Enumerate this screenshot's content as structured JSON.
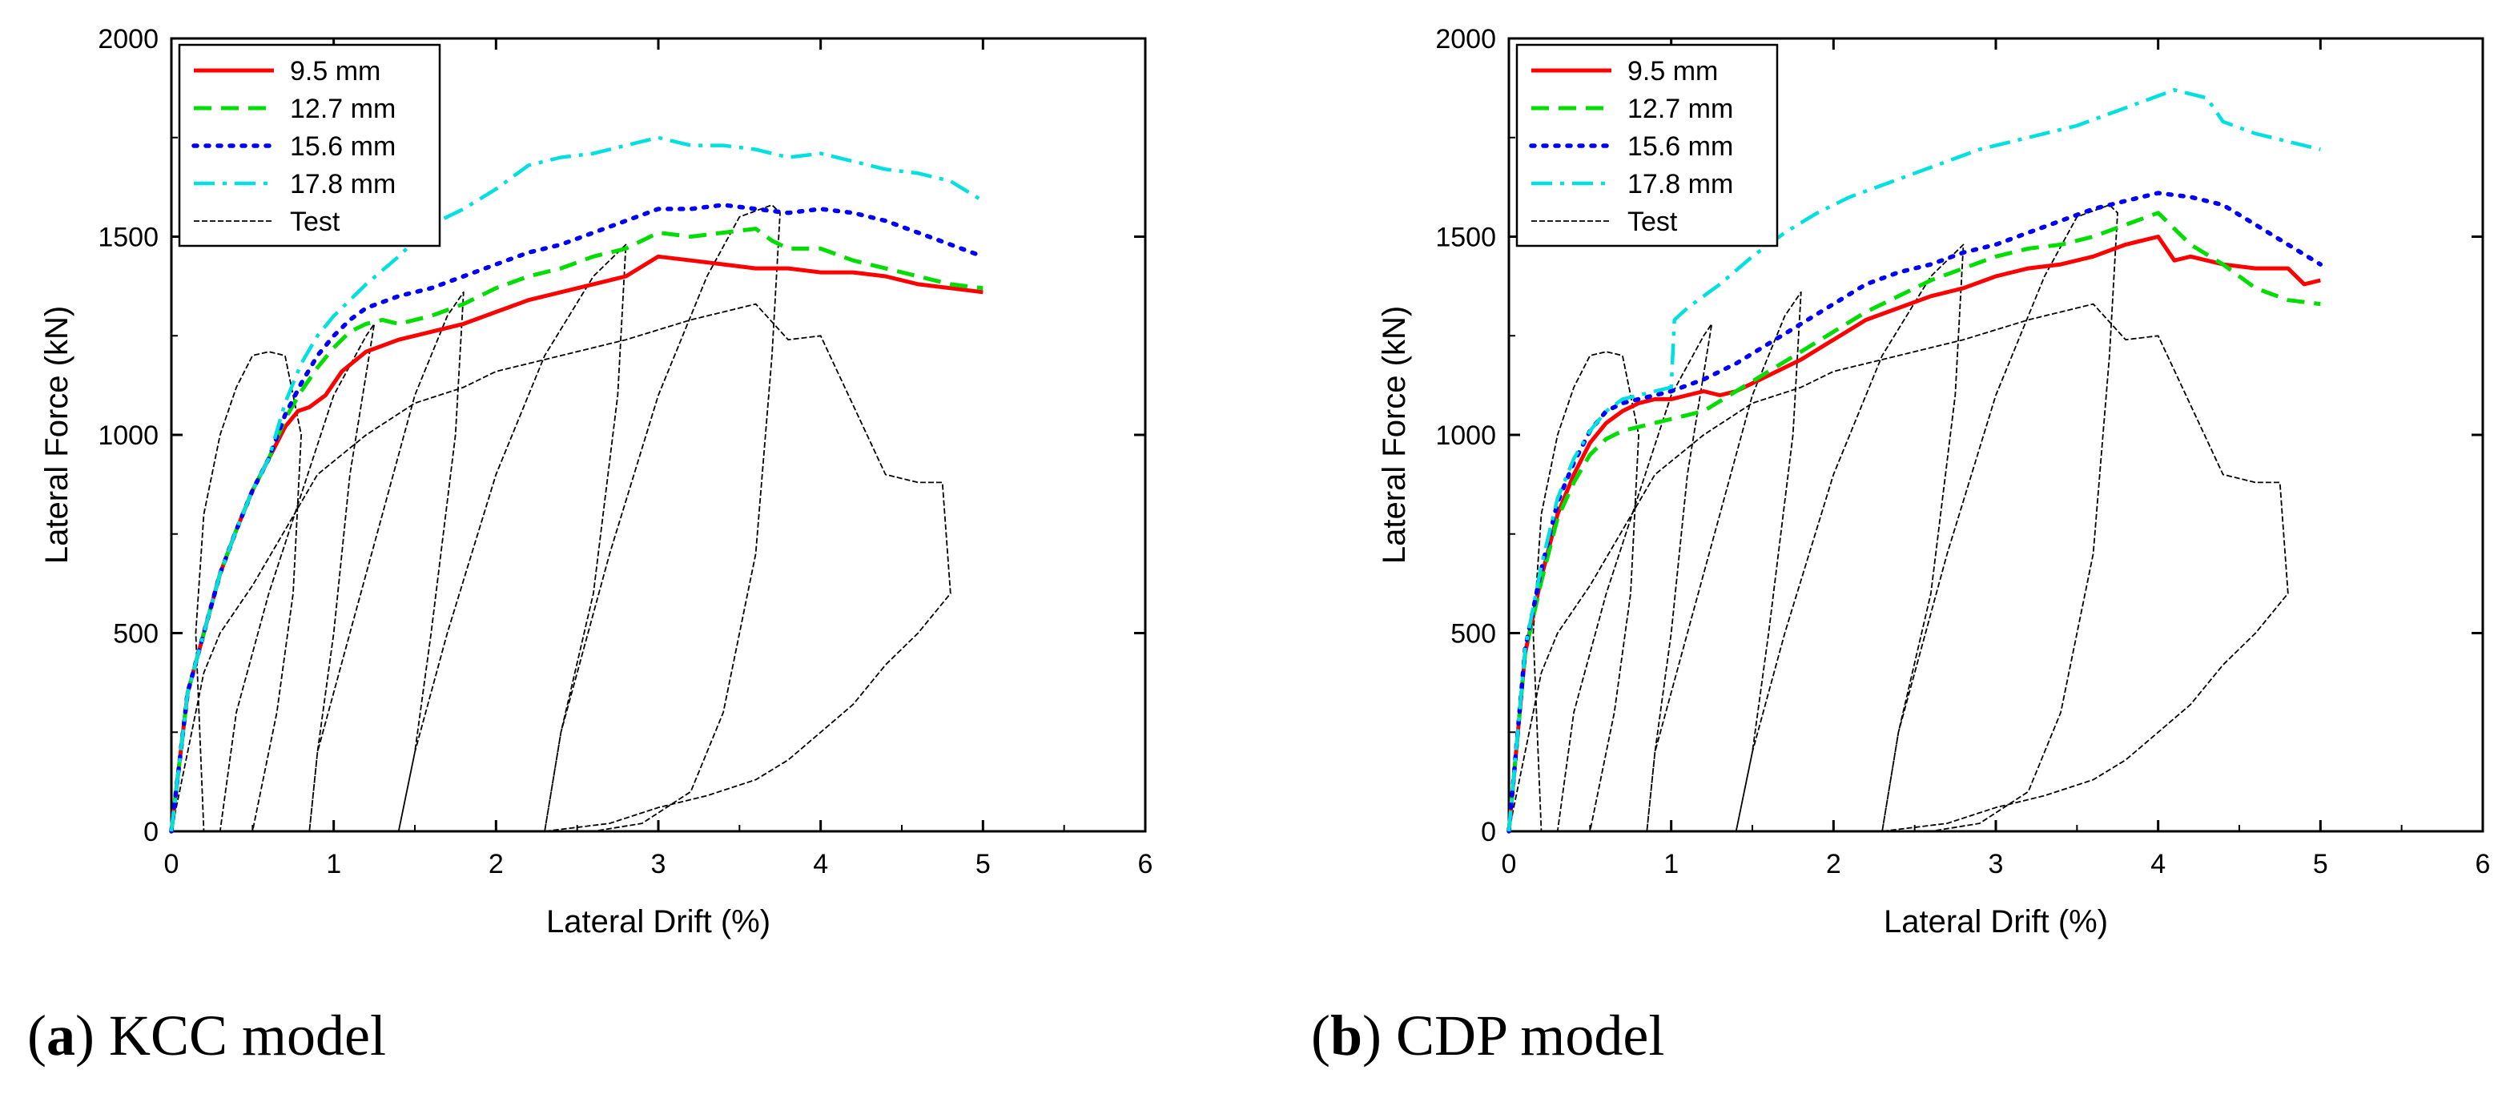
{
  "chart_data": [
    {
      "type": "line",
      "caption": {
        "letter": "a",
        "text": "KCC model"
      },
      "xlabel": "Lateral Drift (%)",
      "ylabel": "Lateral Force (kN)",
      "xlim": [
        0,
        6
      ],
      "ylim": [
        0,
        2000
      ],
      "xticks": [
        0,
        1,
        2,
        3,
        4,
        5,
        6
      ],
      "yticks": [
        0,
        500,
        1000,
        1500,
        2000
      ],
      "legend_position": "top-left",
      "grid": false,
      "series": [
        {
          "name": "9.5 mm",
          "color": "#ff0000",
          "style": "solid",
          "x": [
            0,
            0.1,
            0.2,
            0.3,
            0.4,
            0.5,
            0.6,
            0.7,
            0.78,
            0.85,
            0.95,
            1.05,
            1.2,
            1.4,
            1.6,
            1.8,
            2.0,
            2.2,
            2.4,
            2.6,
            2.8,
            3.0,
            3.2,
            3.4,
            3.6,
            3.8,
            4.0,
            4.2,
            4.4,
            4.6,
            4.8,
            5.0
          ],
          "y": [
            0,
            350,
            500,
            650,
            760,
            860,
            940,
            1020,
            1060,
            1070,
            1100,
            1160,
            1210,
            1240,
            1260,
            1280,
            1310,
            1340,
            1360,
            1380,
            1400,
            1450,
            1440,
            1430,
            1420,
            1420,
            1410,
            1410,
            1400,
            1380,
            1370,
            1360
          ]
        },
        {
          "name": "12.7 mm",
          "color": "#00dd00",
          "style": "dash",
          "x": [
            0,
            0.1,
            0.2,
            0.3,
            0.4,
            0.5,
            0.6,
            0.7,
            0.8,
            0.9,
            1.0,
            1.1,
            1.2,
            1.3,
            1.4,
            1.6,
            1.8,
            2.0,
            2.2,
            2.4,
            2.6,
            2.8,
            3.0,
            3.2,
            3.4,
            3.6,
            3.7,
            3.8,
            4.0,
            4.2,
            4.4,
            4.6,
            4.8,
            5.0
          ],
          "y": [
            0,
            350,
            500,
            650,
            760,
            860,
            940,
            1040,
            1110,
            1170,
            1220,
            1260,
            1280,
            1290,
            1280,
            1300,
            1330,
            1370,
            1400,
            1420,
            1450,
            1470,
            1510,
            1500,
            1510,
            1520,
            1490,
            1470,
            1470,
            1440,
            1420,
            1400,
            1380,
            1370
          ]
        },
        {
          "name": "15.6 mm",
          "color": "#0000ff",
          "style": "dot",
          "x": [
            0,
            0.1,
            0.2,
            0.3,
            0.4,
            0.5,
            0.6,
            0.7,
            0.8,
            0.9,
            1.0,
            1.1,
            1.2,
            1.4,
            1.6,
            1.8,
            2.0,
            2.2,
            2.4,
            2.6,
            2.8,
            3.0,
            3.2,
            3.4,
            3.6,
            3.8,
            4.0,
            4.2,
            4.4,
            4.6,
            4.8,
            5.0
          ],
          "y": [
            0,
            350,
            500,
            650,
            760,
            860,
            940,
            1050,
            1130,
            1200,
            1250,
            1290,
            1320,
            1350,
            1370,
            1400,
            1430,
            1460,
            1480,
            1510,
            1540,
            1570,
            1570,
            1580,
            1570,
            1560,
            1570,
            1560,
            1540,
            1510,
            1480,
            1450
          ]
        },
        {
          "name": "17.8 mm",
          "color": "#00e0e0",
          "style": "dashdot",
          "x": [
            0,
            0.1,
            0.2,
            0.3,
            0.4,
            0.5,
            0.6,
            0.7,
            0.8,
            0.9,
            1.0,
            1.2,
            1.4,
            1.6,
            1.8,
            2.0,
            2.2,
            2.4,
            2.6,
            2.8,
            3.0,
            3.2,
            3.4,
            3.6,
            3.8,
            4.0,
            4.2,
            4.4,
            4.6,
            4.8,
            5.0
          ],
          "y": [
            0,
            350,
            500,
            650,
            760,
            860,
            940,
            1080,
            1180,
            1250,
            1300,
            1380,
            1450,
            1530,
            1570,
            1620,
            1680,
            1700,
            1710,
            1730,
            1750,
            1730,
            1730,
            1720,
            1700,
            1710,
            1690,
            1670,
            1660,
            1640,
            1590
          ]
        },
        {
          "name": "Test",
          "color": "#000000",
          "style": "thin-dash",
          "x": [
            0,
            0.1,
            0.2,
            0.3,
            0.5,
            0.7,
            0.9,
            1.2,
            1.5,
            1.8,
            2.0,
            2.4,
            2.8,
            3.2,
            3.6,
            3.8,
            4.0,
            4.4,
            4.6,
            4.75,
            4.8,
            4.6,
            4.4,
            4.2,
            4.0,
            3.8,
            3.6,
            3.3,
            3.0,
            2.7,
            2.4,
            2.3,
            2.2,
            2.0,
            1.6,
            1.2,
            0.8,
            0.5,
            0.3,
            0.2,
            0.15,
            0.2,
            0.3,
            0.4,
            0.5,
            0.6,
            0.7,
            0.8,
            0.75,
            0.65,
            0.5,
            0.4,
            0.3,
            0.2,
            0.15,
            0.2,
            0.3,
            0.4,
            0.6,
            0.8,
            1.0,
            1.2,
            1.25,
            1.1,
            1.0,
            0.9,
            0.85,
            0.9,
            1.1,
            1.3,
            1.5,
            1.7,
            1.8,
            1.75,
            1.6,
            1.5,
            1.4,
            1.5,
            1.7,
            2.0,
            2.3,
            2.6,
            2.8,
            2.75,
            2.6,
            2.4,
            2.3,
            2.4,
            2.7,
            3.0,
            3.3,
            3.5,
            3.7,
            3.75,
            3.7,
            3.6,
            3.4,
            3.2,
            2.9,
            2.6,
            2.4,
            2.3
          ],
          "y": [
            0,
            200,
            400,
            500,
            620,
            760,
            900,
            1000,
            1080,
            1120,
            1160,
            1200,
            1240,
            1290,
            1330,
            1240,
            1250,
            900,
            880,
            880,
            600,
            500,
            420,
            320,
            250,
            180,
            130,
            90,
            60,
            20,
            5,
            0,
            0,
            0,
            0,
            0,
            0,
            0,
            0,
            0,
            500,
            800,
            1000,
            1120,
            1200,
            1210,
            1200,
            1000,
            600,
            300,
            0,
            0,
            0,
            0,
            0,
            0,
            0,
            300,
            600,
            850,
            1100,
            1250,
            1280,
            900,
            500,
            200,
            0,
            200,
            500,
            800,
            1100,
            1300,
            1360,
            1000,
            500,
            200,
            0,
            200,
            500,
            900,
            1200,
            1400,
            1480,
            1100,
            600,
            250,
            0,
            250,
            700,
            1100,
            1400,
            1550,
            1580,
            1560,
            1200,
            700,
            300,
            100,
            20,
            0,
            0,
            0
          ]
        }
      ]
    },
    {
      "type": "line",
      "caption": {
        "letter": "b",
        "text": "CDP model"
      },
      "xlabel": "Lateral Drift (%)",
      "ylabel": "Lateral Force (kN)",
      "xlim": [
        0,
        6
      ],
      "ylim": [
        0,
        2000
      ],
      "xticks": [
        0,
        1,
        2,
        3,
        4,
        5,
        6
      ],
      "yticks": [
        0,
        500,
        1000,
        1500,
        2000
      ],
      "legend_position": "top-left",
      "grid": false,
      "series": [
        {
          "name": "9.5 mm",
          "color": "#ff0000",
          "style": "solid",
          "x": [
            0,
            0.1,
            0.2,
            0.3,
            0.4,
            0.5,
            0.6,
            0.7,
            0.8,
            0.9,
            1.0,
            1.1,
            1.2,
            1.3,
            1.4,
            1.6,
            1.8,
            2.0,
            2.2,
            2.4,
            2.6,
            2.8,
            3.0,
            3.2,
            3.4,
            3.6,
            3.8,
            4.0,
            4.1,
            4.2,
            4.4,
            4.6,
            4.8,
            4.9,
            5.0
          ],
          "y": [
            0,
            450,
            640,
            800,
            900,
            980,
            1030,
            1060,
            1080,
            1090,
            1090,
            1100,
            1110,
            1100,
            1110,
            1150,
            1190,
            1240,
            1290,
            1320,
            1350,
            1370,
            1400,
            1420,
            1430,
            1450,
            1480,
            1500,
            1440,
            1450,
            1430,
            1420,
            1420,
            1380,
            1390
          ]
        },
        {
          "name": "12.7 mm",
          "color": "#00dd00",
          "style": "dash",
          "x": [
            0,
            0.1,
            0.2,
            0.3,
            0.4,
            0.5,
            0.6,
            0.7,
            0.8,
            0.9,
            1.0,
            1.1,
            1.2,
            1.4,
            1.6,
            1.8,
            2.0,
            2.2,
            2.4,
            2.6,
            2.8,
            3.0,
            3.2,
            3.4,
            3.6,
            3.8,
            4.0,
            4.2,
            4.4,
            4.6,
            4.8,
            5.0
          ],
          "y": [
            0,
            450,
            630,
            790,
            880,
            950,
            990,
            1010,
            1020,
            1030,
            1040,
            1050,
            1060,
            1110,
            1160,
            1210,
            1260,
            1310,
            1350,
            1390,
            1420,
            1450,
            1470,
            1480,
            1500,
            1530,
            1560,
            1480,
            1430,
            1370,
            1340,
            1330
          ]
        },
        {
          "name": "15.6 mm",
          "color": "#0000ff",
          "style": "dot",
          "x": [
            0,
            0.1,
            0.2,
            0.3,
            0.4,
            0.5,
            0.6,
            0.7,
            0.8,
            0.9,
            1.0,
            1.2,
            1.4,
            1.6,
            1.8,
            2.0,
            2.2,
            2.4,
            2.6,
            2.8,
            3.0,
            3.2,
            3.4,
            3.6,
            3.8,
            4.0,
            4.2,
            4.4,
            4.6,
            4.8,
            5.0
          ],
          "y": [
            0,
            460,
            660,
            830,
            930,
            1010,
            1060,
            1080,
            1090,
            1100,
            1110,
            1140,
            1180,
            1230,
            1280,
            1330,
            1380,
            1410,
            1430,
            1460,
            1480,
            1510,
            1540,
            1570,
            1590,
            1610,
            1600,
            1580,
            1530,
            1480,
            1430
          ]
        },
        {
          "name": "17.8 mm",
          "color": "#00e0e0",
          "style": "dashdot",
          "x": [
            0,
            0.1,
            0.2,
            0.3,
            0.4,
            0.5,
            0.6,
            0.7,
            0.8,
            0.9,
            1.0,
            1.02,
            1.1,
            1.3,
            1.5,
            1.7,
            1.9,
            2.1,
            2.3,
            2.5,
            2.7,
            2.9,
            3.1,
            3.3,
            3.5,
            3.7,
            3.9,
            4.1,
            4.2,
            4.3,
            4.4,
            4.6,
            4.8,
            5.0
          ],
          "y": [
            0,
            460,
            670,
            840,
            940,
            1010,
            1060,
            1090,
            1100,
            1110,
            1120,
            1290,
            1320,
            1380,
            1450,
            1510,
            1560,
            1600,
            1630,
            1660,
            1690,
            1720,
            1740,
            1760,
            1780,
            1810,
            1840,
            1870,
            1860,
            1850,
            1790,
            1760,
            1740,
            1720
          ]
        },
        {
          "name": "Test",
          "color": "#000000",
          "style": "thin-dash",
          "x": [
            0,
            0.1,
            0.2,
            0.3,
            0.5,
            0.7,
            0.9,
            1.2,
            1.5,
            1.8,
            2.0,
            2.4,
            2.8,
            3.2,
            3.6,
            3.8,
            4.0,
            4.4,
            4.6,
            4.75,
            4.8,
            4.6,
            4.4,
            4.2,
            4.0,
            3.8,
            3.6,
            3.3,
            3.0,
            2.7,
            2.4,
            2.3,
            2.2,
            2.0,
            1.6,
            1.2,
            0.8,
            0.5,
            0.3,
            0.2,
            0.15,
            0.2,
            0.3,
            0.4,
            0.5,
            0.6,
            0.7,
            0.8,
            0.75,
            0.65,
            0.5,
            0.4,
            0.3,
            0.2,
            0.15,
            0.2,
            0.3,
            0.4,
            0.6,
            0.8,
            1.0,
            1.2,
            1.25,
            1.1,
            1.0,
            0.9,
            0.85,
            0.9,
            1.1,
            1.3,
            1.5,
            1.7,
            1.8,
            1.75,
            1.6,
            1.5,
            1.4,
            1.5,
            1.7,
            2.0,
            2.3,
            2.6,
            2.8,
            2.75,
            2.6,
            2.4,
            2.3,
            2.4,
            2.7,
            3.0,
            3.3,
            3.5,
            3.7,
            3.75,
            3.7,
            3.6,
            3.4,
            3.2,
            2.9,
            2.6,
            2.4,
            2.3
          ],
          "y": [
            0,
            200,
            400,
            500,
            620,
            760,
            900,
            1000,
            1080,
            1120,
            1160,
            1200,
            1240,
            1290,
            1330,
            1240,
            1250,
            900,
            880,
            880,
            600,
            500,
            420,
            320,
            250,
            180,
            130,
            90,
            60,
            20,
            5,
            0,
            0,
            0,
            0,
            0,
            0,
            0,
            0,
            0,
            500,
            800,
            1000,
            1120,
            1200,
            1210,
            1200,
            1000,
            600,
            300,
            0,
            0,
            0,
            0,
            0,
            0,
            0,
            300,
            600,
            850,
            1100,
            1250,
            1280,
            900,
            500,
            200,
            0,
            200,
            500,
            800,
            1100,
            1300,
            1360,
            1000,
            500,
            200,
            0,
            200,
            500,
            900,
            1200,
            1400,
            1480,
            1100,
            600,
            250,
            0,
            250,
            700,
            1100,
            1400,
            1550,
            1580,
            1560,
            1200,
            700,
            300,
            100,
            20,
            0,
            0,
            0
          ]
        }
      ]
    }
  ]
}
